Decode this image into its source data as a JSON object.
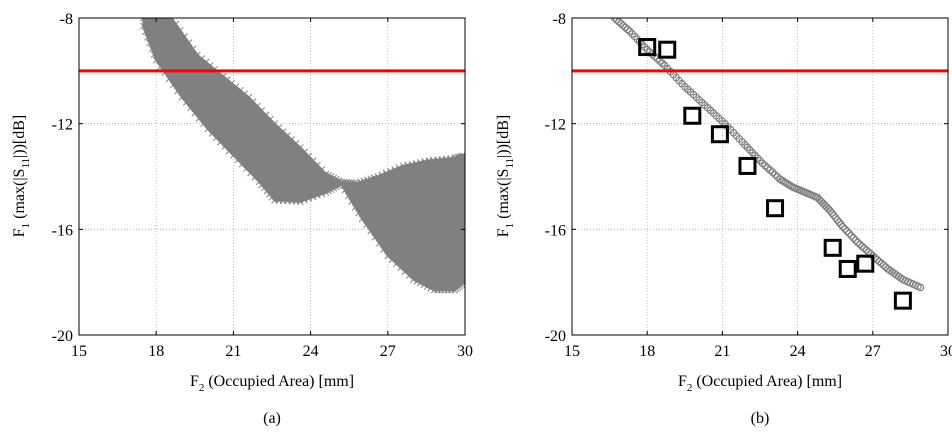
{
  "figure": {
    "panels": [
      {
        "id": "a",
        "panel_label": "(a)",
        "xlabel_main": "F",
        "xlabel_sub": "2",
        "xlabel_rest": " (Occupied Area) [mm]",
        "ylabel_f": "F",
        "ylabel_fsub": "1",
        "ylabel_mid": " (max(|S",
        "ylabel_ssub": "11",
        "ylabel_end": "|))[dB]"
      },
      {
        "id": "b",
        "panel_label": "(b)",
        "xlabel_main": "F",
        "xlabel_sub": "2",
        "xlabel_rest": " (Occupied Area) [mm]",
        "ylabel_f": "F",
        "ylabel_fsub": "1",
        "ylabel_mid": " (max(|S",
        "ylabel_ssub": "11",
        "ylabel_end": "|))[dB]"
      }
    ]
  },
  "colors": {
    "cloud": "#808080",
    "threshold": "#ff0000",
    "square": "#000000",
    "circle": "#808080",
    "grid": "#b0b0b0"
  },
  "chart_data": [
    {
      "type": "scatter",
      "panel": "a",
      "xlim": [
        15,
        30
      ],
      "ylim": [
        -20,
        -8
      ],
      "xticks": [
        15,
        18,
        21,
        24,
        27,
        30
      ],
      "yticks": [
        -20,
        -16,
        -12,
        -8
      ],
      "grid": true,
      "threshold_y": -10,
      "series": [
        {
          "marker": "x",
          "color": "#808080",
          "region_upper": [
            [
              17.5,
              -8
            ],
            [
              18.6,
              -8
            ],
            [
              19.6,
              -9.4
            ],
            [
              20.6,
              -10.2
            ],
            [
              21.6,
              -11.0
            ],
            [
              22.6,
              -12.0
            ],
            [
              23.6,
              -12.9
            ],
            [
              24.6,
              -13.9
            ],
            [
              25.2,
              -14.2
            ],
            [
              25.8,
              -14.25
            ],
            [
              26.6,
              -14.0
            ],
            [
              27.6,
              -13.6
            ],
            [
              28.6,
              -13.4
            ],
            [
              29.6,
              -13.3
            ],
            [
              30,
              -13.2
            ]
          ],
          "region_lower": [
            [
              17.5,
              -8.3
            ],
            [
              18.0,
              -9.6
            ],
            [
              19.0,
              -11.0
            ],
            [
              20.0,
              -12.2
            ],
            [
              21.0,
              -13.2
            ],
            [
              22.0,
              -14.2
            ],
            [
              22.6,
              -14.9
            ],
            [
              23.6,
              -14.95
            ],
            [
              24.6,
              -14.6
            ],
            [
              25.2,
              -14.3
            ],
            [
              26.0,
              -15.6
            ],
            [
              27.0,
              -17.0
            ],
            [
              28.0,
              -17.9
            ],
            [
              28.8,
              -18.3
            ],
            [
              29.6,
              -18.3
            ],
            [
              30,
              -18.0
            ]
          ]
        }
      ]
    },
    {
      "type": "scatter",
      "panel": "b",
      "xlim": [
        15,
        30
      ],
      "ylim": [
        -20,
        -8
      ],
      "xticks": [
        15,
        18,
        21,
        24,
        27,
        30
      ],
      "yticks": [
        -20,
        -16,
        -12,
        -8
      ],
      "grid": true,
      "threshold_y": -10,
      "series": [
        {
          "marker": "o",
          "color": "#808080",
          "x": [
            16.7,
            17.3,
            18.0,
            18.7,
            19.5,
            20.3,
            21.1,
            21.9,
            22.6,
            23.3,
            23.8,
            24.3,
            24.8,
            25.3,
            25.8,
            26.4,
            27.0,
            27.6,
            28.2,
            28.9
          ],
          "y": [
            -8.0,
            -8.5,
            -9.2,
            -9.8,
            -10.6,
            -11.3,
            -12.0,
            -12.8,
            -13.5,
            -14.1,
            -14.4,
            -14.6,
            -14.8,
            -15.3,
            -15.9,
            -16.5,
            -17.0,
            -17.5,
            -17.9,
            -18.2
          ]
        },
        {
          "marker": "s",
          "color": "#000000",
          "x": [
            18.0,
            18.8,
            19.8,
            20.9,
            22.0,
            23.1,
            25.4,
            26.0,
            26.7,
            28.2
          ],
          "y": [
            -9.1,
            -9.2,
            -11.7,
            -12.4,
            -13.6,
            -15.2,
            -16.7,
            -17.5,
            -17.3,
            -18.7
          ]
        }
      ]
    }
  ]
}
